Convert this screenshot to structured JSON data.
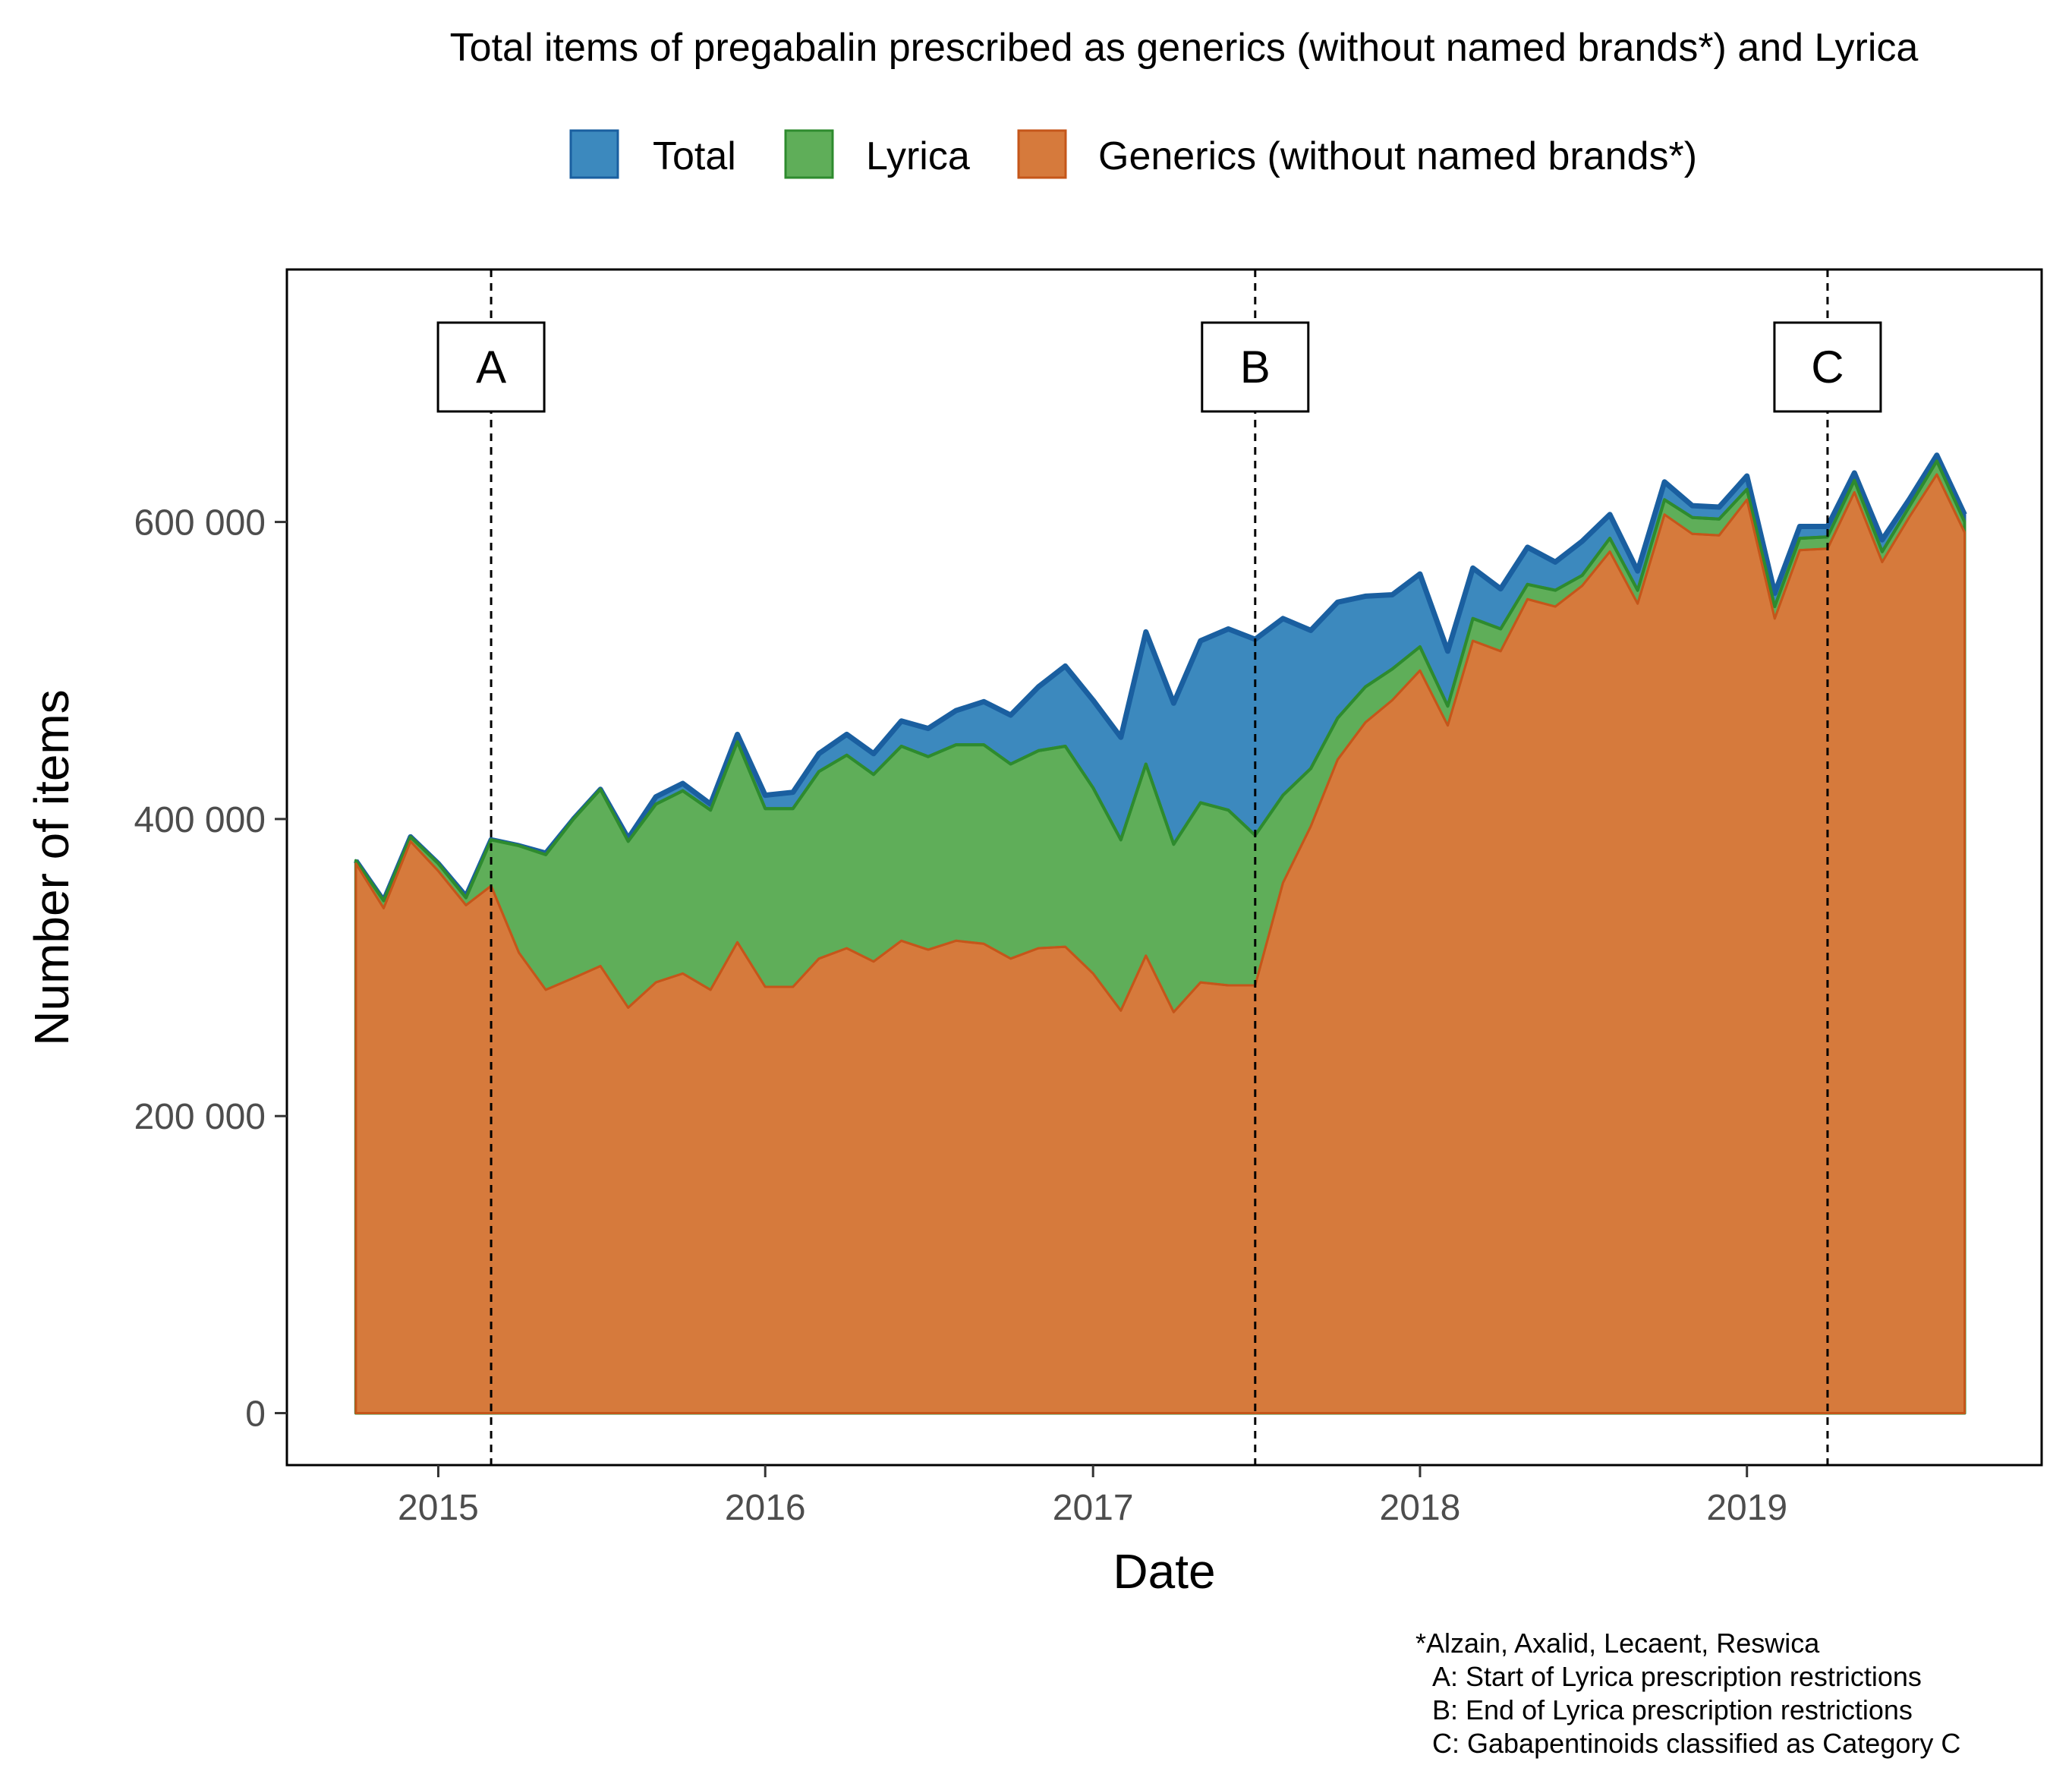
{
  "chart_data": {
    "type": "area",
    "title": "Total items of pregabalin prescribed as generics (without named brands*) and Lyrica",
    "xlabel": "Date",
    "ylabel": "Number of items",
    "x_ticks": [
      "2015",
      "2016",
      "2017",
      "2018",
      "2019"
    ],
    "y_ticks": [
      "0",
      "200 000",
      "400 000",
      "600 000"
    ],
    "ylim": [
      -35000,
      770000
    ],
    "xlim": [
      "2014-07-16",
      "2019-11-26"
    ],
    "grid": false,
    "legend_position": "top",
    "dates": [
      "2014-10",
      "2014-11",
      "2014-12",
      "2015-01",
      "2015-02",
      "2015-03",
      "2015-04",
      "2015-05",
      "2015-06",
      "2015-07",
      "2015-08",
      "2015-09",
      "2015-10",
      "2015-11",
      "2015-12",
      "2016-01",
      "2016-02",
      "2016-03",
      "2016-04",
      "2016-05",
      "2016-06",
      "2016-07",
      "2016-08",
      "2016-09",
      "2016-10",
      "2016-11",
      "2016-12",
      "2017-01",
      "2017-02",
      "2017-03",
      "2017-04",
      "2017-05",
      "2017-06",
      "2017-07",
      "2017-08",
      "2017-09",
      "2017-10",
      "2017-11",
      "2017-12",
      "2018-01",
      "2018-02",
      "2018-03",
      "2018-04",
      "2018-05",
      "2018-06",
      "2018-07",
      "2018-08",
      "2018-09",
      "2018-10",
      "2018-11",
      "2018-12",
      "2019-01",
      "2019-02",
      "2019-03",
      "2019-04",
      "2019-05",
      "2019-06",
      "2019-07",
      "2019-08",
      "2019-09"
    ],
    "series": [
      {
        "name": "Total",
        "color": "#3C89BE",
        "line_color": "#1A5FA0",
        "values": [
          372000,
          345000,
          388000,
          370000,
          348000,
          386000,
          382000,
          377000,
          400000,
          420000,
          387000,
          415000,
          424000,
          410000,
          457000,
          416000,
          418000,
          444000,
          457000,
          444000,
          466000,
          461000,
          473000,
          479000,
          470000,
          489000,
          503000,
          480000,
          455000,
          526000,
          478000,
          520000,
          528000,
          521000,
          535000,
          527000,
          546000,
          550000,
          551000,
          565000,
          513000,
          569000,
          555000,
          583000,
          573000,
          587000,
          605000,
          567000,
          627000,
          611000,
          610000,
          631000,
          552000,
          597000,
          597000,
          633000,
          588000,
          615000,
          645000,
          605000
        ]
      },
      {
        "name": "Lyrica",
        "color": "#5FAE59",
        "line_color": "#2E8B2E",
        "values": [
          372000,
          345000,
          388000,
          370000,
          347000,
          386000,
          382000,
          376000,
          400000,
          420000,
          385000,
          410000,
          419000,
          406000,
          452000,
          407000,
          407000,
          432000,
          443000,
          430000,
          449000,
          442000,
          450000,
          450000,
          437000,
          446000,
          449000,
          421000,
          386000,
          437000,
          383000,
          411000,
          406000,
          389000,
          416000,
          434000,
          468000,
          489000,
          501000,
          516000,
          476000,
          535000,
          528000,
          558000,
          554000,
          564000,
          589000,
          554000,
          615000,
          603000,
          602000,
          622000,
          543000,
          589000,
          590000,
          628000,
          580000,
          610000,
          641000,
          600000
        ]
      },
      {
        "name": "Generics (without named brands*)",
        "color": "#D67A3C",
        "line_color": "#C5561A",
        "values": [
          370000,
          340000,
          385000,
          365000,
          342000,
          355000,
          310000,
          285000,
          293000,
          301000,
          273000,
          290000,
          296000,
          285000,
          317000,
          287000,
          287000,
          306000,
          313000,
          304000,
          318000,
          312000,
          318000,
          316000,
          306000,
          313000,
          314000,
          296000,
          271000,
          308000,
          270000,
          290000,
          288000,
          288000,
          357000,
          395000,
          440000,
          465000,
          480000,
          500000,
          463000,
          520000,
          513000,
          548000,
          543000,
          557000,
          580000,
          545000,
          605000,
          592000,
          591000,
          615000,
          535000,
          581000,
          582000,
          620000,
          573000,
          603000,
          632000,
          593000
        ]
      }
    ],
    "annotations": [
      {
        "label": "A",
        "date": "2015-03-01"
      },
      {
        "label": "B",
        "date": "2017-07-01"
      },
      {
        "label": "C",
        "date": "2019-04-01"
      }
    ],
    "footnote": [
      "*Alzain, Axalid, Lecaent, Reswica",
      "A: Start of Lyrica prescription restrictions",
      "B: End of Lyrica prescription restrictions",
      "C: Gabapentinoids classified as Category C"
    ]
  }
}
